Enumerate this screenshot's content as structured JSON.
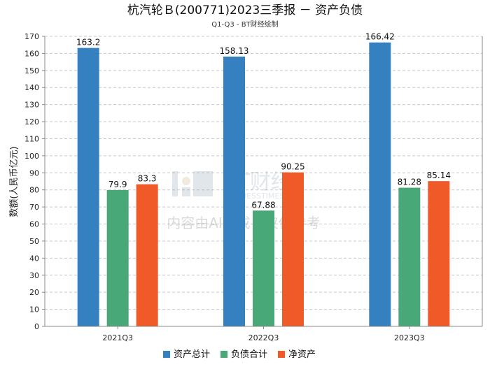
{
  "chart_data": {
    "type": "bar",
    "title": "杭汽轮Ｂ(200771)2023三季报 － 资产负债",
    "subtitle": "Q1-Q3 - BT财经绘制",
    "ylabel": "数额(人民币亿元)",
    "xlabel": "",
    "categories": [
      "2021Q3",
      "2022Q3",
      "2023Q3"
    ],
    "series": [
      {
        "name": "资产总计",
        "color": "#3480c0",
        "values": [
          163.2,
          158.13,
          166.42
        ],
        "labels": [
          "163.2",
          "158.13",
          "166.42"
        ]
      },
      {
        "name": "负债合计",
        "color": "#48a878",
        "values": [
          79.9,
          67.88,
          81.28
        ],
        "labels": [
          "79.9",
          "67.88",
          "81.28"
        ]
      },
      {
        "name": "净资产",
        "color": "#f05a28",
        "values": [
          83.3,
          90.25,
          85.14
        ],
        "labels": [
          "83.3",
          "90.25",
          "85.14"
        ]
      }
    ],
    "ylim": [
      0,
      170
    ],
    "yticks": [
      0,
      10,
      20,
      30,
      40,
      50,
      60,
      70,
      80,
      90,
      100,
      110,
      120,
      130,
      140,
      150,
      160,
      170
    ],
    "grid": true,
    "legend": "bottom-center",
    "watermark": {
      "logo_text": "BT财经",
      "logo_sub": "BUSINESSTIMES",
      "notice": "内容由AI生成，仅供参考"
    }
  }
}
